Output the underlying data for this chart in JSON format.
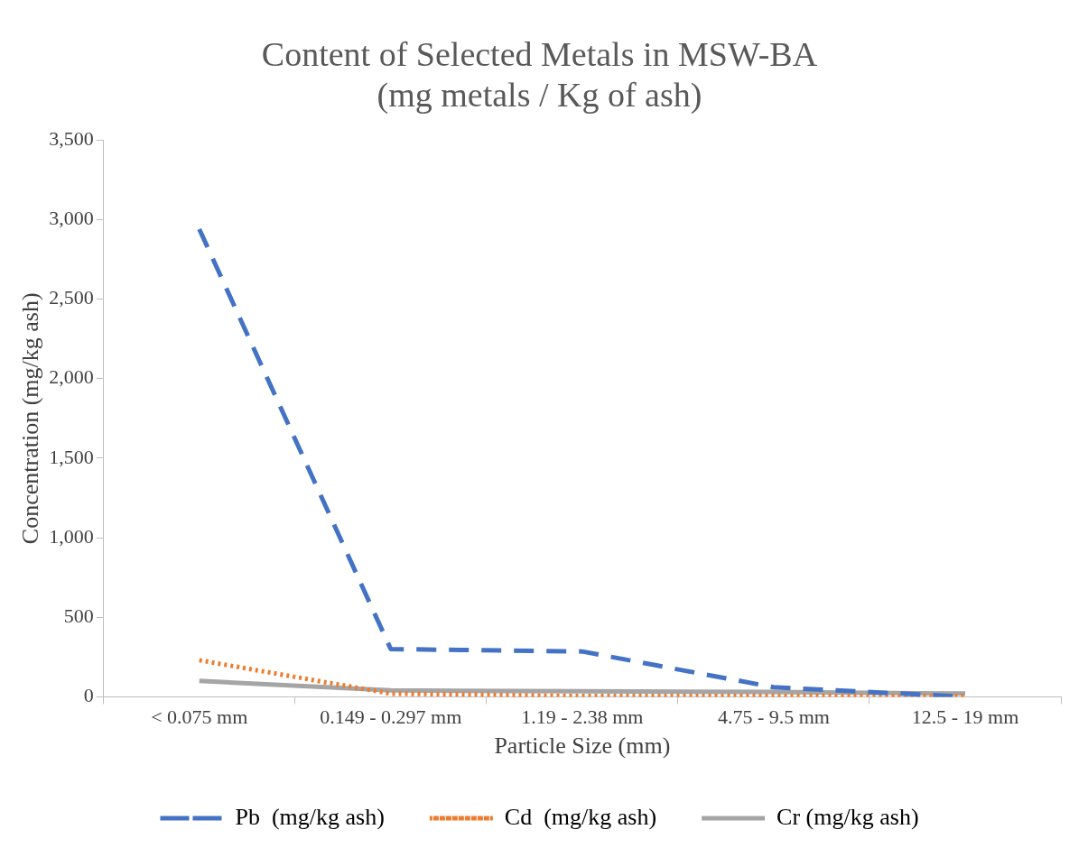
{
  "chart_data": {
    "type": "line",
    "title": [
      "Content of Selected Metals in MSW-BA",
      "(mg metals / Kg of ash)"
    ],
    "categories": [
      "< 0.075 mm",
      "0.149 - 0.297 mm",
      "1.19 - 2.38 mm",
      "4.75 - 9.5 mm",
      "12.5 - 19 mm"
    ],
    "series": [
      {
        "name": "Pb  (mg/kg ash)",
        "color": "#4472c4",
        "line_style": "dashed",
        "values": [
          2940,
          300,
          285,
          60,
          0
        ]
      },
      {
        "name": "Cd  (mg/kg ash)",
        "color": "#ed7d31",
        "line_style": "dotted",
        "values": [
          230,
          20,
          5,
          5,
          5
        ]
      },
      {
        "name": "Cr (mg/kg ash)",
        "color": "#a5a5a5",
        "line_style": "solid",
        "values": [
          100,
          40,
          35,
          30,
          20
        ]
      }
    ],
    "xlabel": "Particle Size (mm)",
    "ylabel": "Concentration (mg/kg ash)",
    "ylim": [
      0,
      3500
    ],
    "yticks": [
      0,
      500,
      {
        "value": 1000,
        "label": "1,000"
      },
      {
        "value": 1500,
        "label": "1,500"
      },
      {
        "value": 2000,
        "label": "2,000"
      },
      {
        "value": 2500,
        "label": "2,500"
      },
      {
        "value": 3000,
        "label": "3,000"
      },
      {
        "value": 3500,
        "label": "3,500"
      }
    ],
    "grid": false,
    "legend": "bottom",
    "marker": "none"
  }
}
